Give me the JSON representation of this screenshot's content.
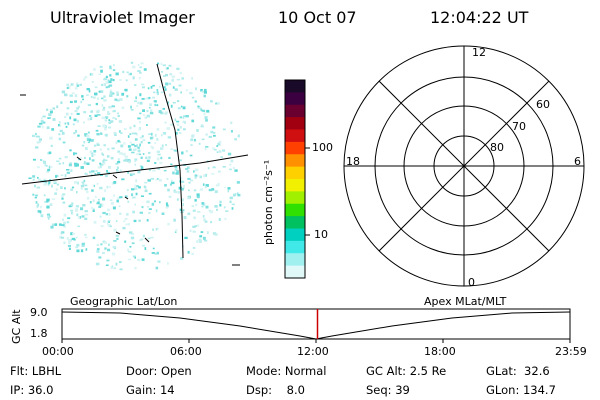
{
  "header": {
    "instrument": "Ultraviolet Imager",
    "date": "10 Oct 07",
    "time": "12:04:22 UT"
  },
  "colorbar": {
    "label": "photon cm⁻²s⁻¹",
    "ticks": [
      "100",
      "10"
    ],
    "colors": [
      "#1a0a2a",
      "#3a0040",
      "#6a0030",
      "#a00010",
      "#d01010",
      "#ff4000",
      "#ff9000",
      "#ffd000",
      "#f0f000",
      "#a0f000",
      "#30e000",
      "#00c060",
      "#00d0c0",
      "#40e8e8",
      "#a0f0f0",
      "#e0f8f8"
    ]
  },
  "polar": {
    "lat_labels": [
      "60",
      "70",
      "80"
    ],
    "mlt_labels": {
      "top": "12",
      "bottom": "0",
      "left": "18",
      "right": "6"
    }
  },
  "timeline": {
    "label_left": "Geographic Lat/Lon",
    "label_right": "Apex MLat/MLT",
    "yaxis_label": "GC Alt",
    "y_ticks": [
      "9.0",
      "1.8"
    ],
    "x_ticks": [
      "00:00",
      "06:00",
      "12:00",
      "18:00",
      "23:59"
    ],
    "marker_color": "#cc0000",
    "marker_time_hours": 12.07
  },
  "status": {
    "flt": "Flt: LBHL",
    "ip": "IP: 36.0",
    "door": "Door: Open",
    "gain": "Gain: 14",
    "mode": "Mode: Normal",
    "dsp": "Dsp:    8.0",
    "gcalt": "GC Alt: 2.5 Re",
    "seq": "Seq: 39",
    "glat": "GLat:  32.6",
    "glon": "GLon: 134.7"
  }
}
